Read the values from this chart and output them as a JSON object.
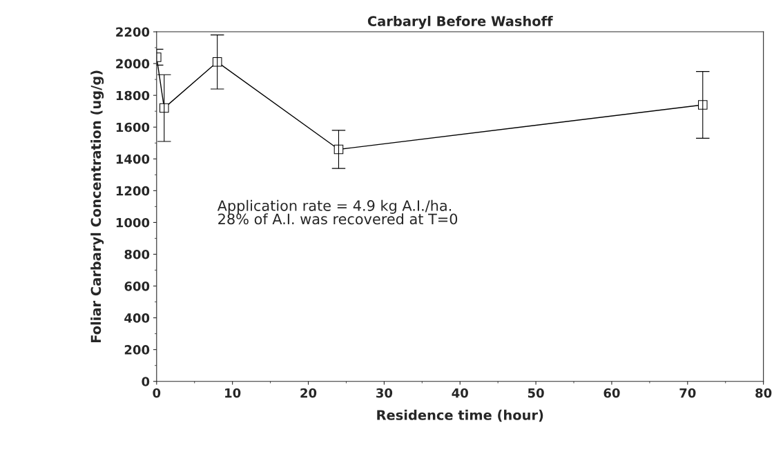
{
  "chart_data": {
    "type": "line",
    "title": "Carbaryl Before Washoff",
    "xlabel": "Residence time (hour)",
    "ylabel": "Foliar Carbaryl Concentration (ug/g)",
    "x": [
      0,
      1,
      8,
      24,
      72
    ],
    "series": [
      {
        "color": "#000000",
        "values": [
          2040,
          1720,
          2010,
          1460,
          1740
        ],
        "errors": [
          50,
          210,
          170,
          120,
          210
        ]
      }
    ],
    "xlim": [
      0,
      80
    ],
    "xticks": [
      0,
      10,
      20,
      30,
      40,
      50,
      60,
      70,
      80
    ],
    "ylim": [
      0,
      2200
    ],
    "yticks": [
      0,
      200,
      400,
      600,
      800,
      1000,
      1200,
      1400,
      1600,
      1800,
      2000,
      2200
    ],
    "marker": "square",
    "line_style": "solid",
    "grid": false,
    "legend": false,
    "annotations": [
      "Application rate = 4.9 kg A.I./ha.\n28% of A.I. was recovered at T=0"
    ]
  }
}
